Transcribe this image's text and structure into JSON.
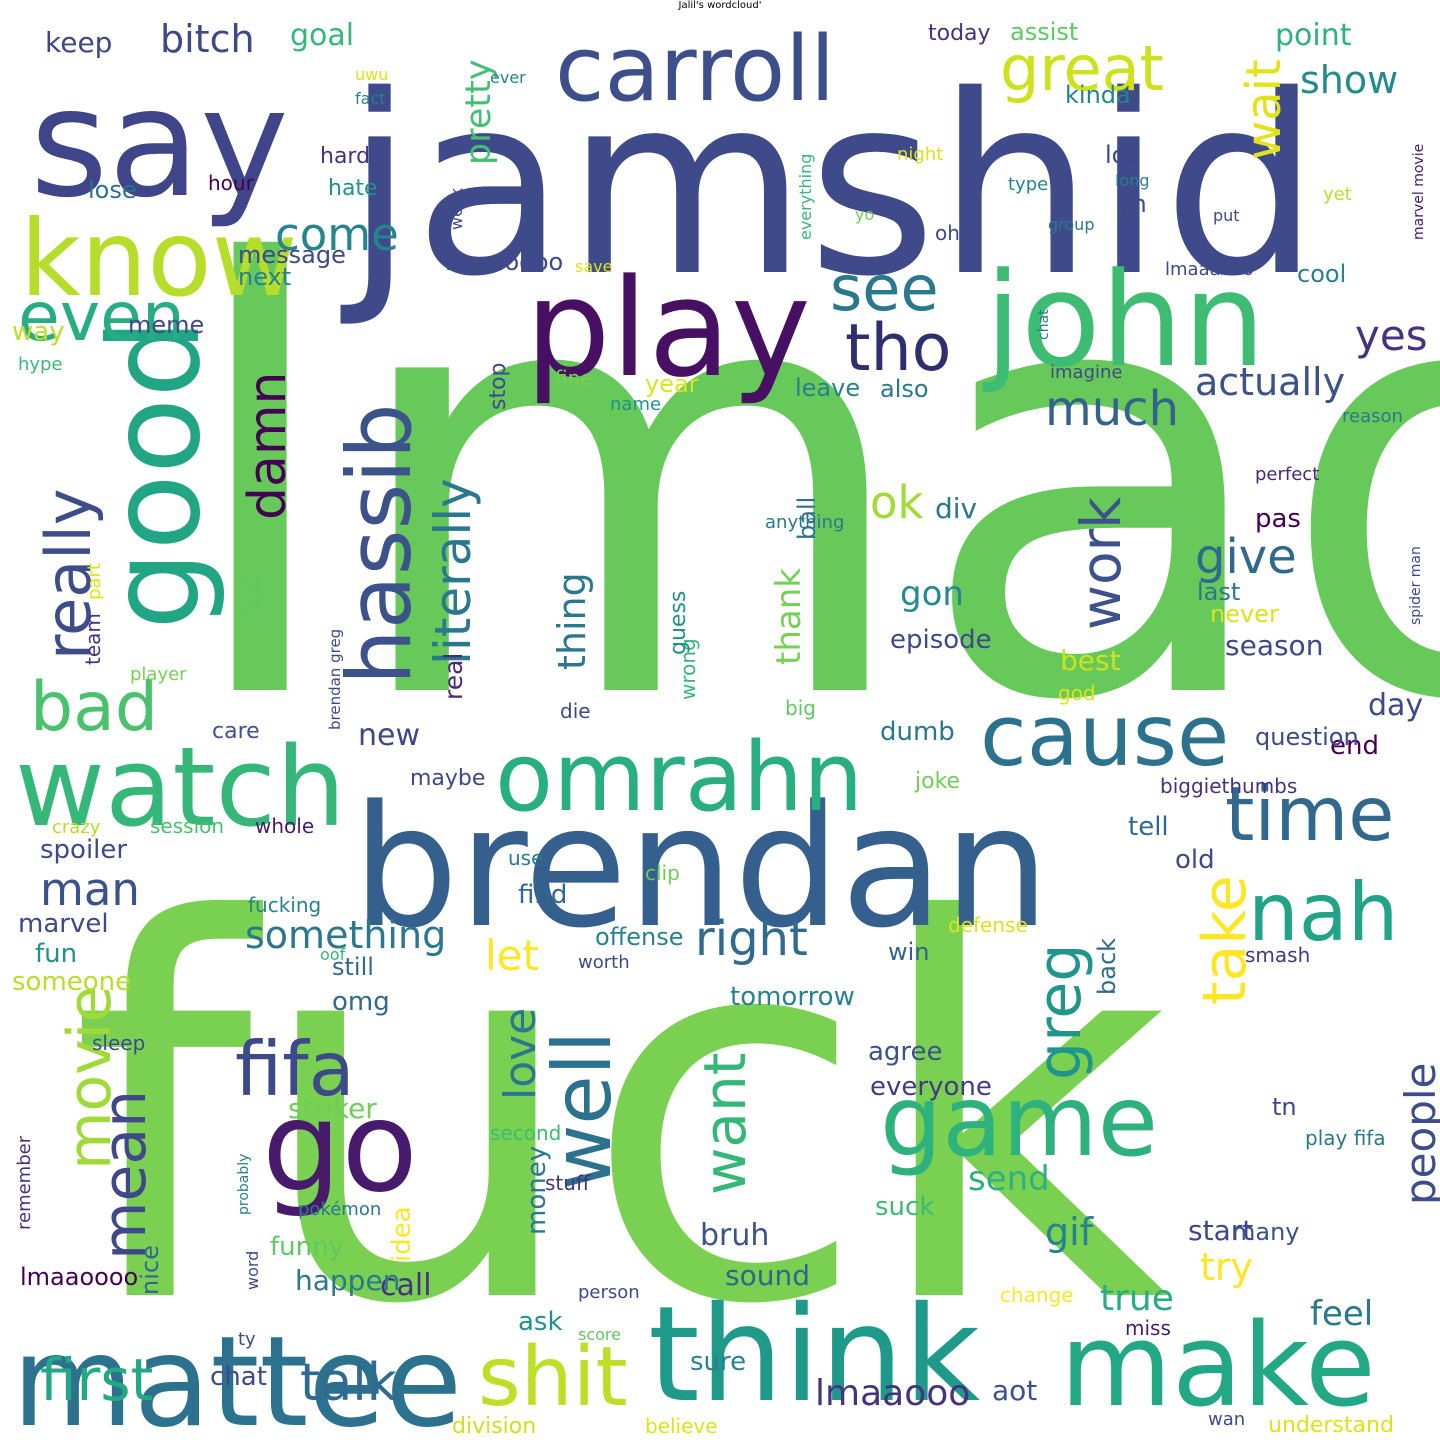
{
  "title": "Jalil's wordcloud'",
  "palette": "viridis",
  "background": "#ffffff",
  "words": [
    {
      "text": "lmao",
      "color": "#66c95a"
    },
    {
      "text": "fuck",
      "color": "#7ad151"
    },
    {
      "text": "jamshid",
      "color": "#3e4a89"
    },
    {
      "text": "say",
      "color": "#404488"
    },
    {
      "text": "brendan",
      "color": "#355f8d"
    },
    {
      "text": "carroll",
      "color": "#3c4f8a"
    },
    {
      "text": "play",
      "color": "#471063"
    },
    {
      "text": "john",
      "color": "#3fbc73"
    },
    {
      "text": "know",
      "color": "#b5de2b"
    },
    {
      "text": "good",
      "color": "#21a585"
    },
    {
      "text": "watch",
      "color": "#35b779"
    },
    {
      "text": "mattee",
      "color": "#2c728e"
    },
    {
      "text": "think",
      "color": "#1f9a8a"
    },
    {
      "text": "make",
      "color": "#22a884"
    },
    {
      "text": "go",
      "color": "#481a6c"
    },
    {
      "text": "game",
      "color": "#2db27d"
    },
    {
      "text": "omrahn",
      "color": "#29af7f"
    },
    {
      "text": "cause",
      "color": "#2c728e"
    },
    {
      "text": "hassib",
      "color": "#3b528b"
    },
    {
      "text": "time",
      "color": "#31688e"
    },
    {
      "text": "nah",
      "color": "#20a386"
    },
    {
      "text": "shit",
      "color": "#bddf26"
    },
    {
      "text": "well",
      "color": "#2c718e"
    },
    {
      "text": "fifa",
      "color": "#3e4989"
    },
    {
      "text": "even",
      "color": "#27ad81"
    },
    {
      "text": "really",
      "color": "#3e4c8a"
    },
    {
      "text": "tho",
      "color": "#2e2f6e"
    },
    {
      "text": "see",
      "color": "#2a788e"
    },
    {
      "text": "great",
      "color": "#cde11d"
    },
    {
      "text": "bad",
      "color": "#4ac16d"
    },
    {
      "text": "movie",
      "color": "#a0da39"
    },
    {
      "text": "mean",
      "color": "#3f4889"
    },
    {
      "text": "take",
      "color": "#fde725"
    },
    {
      "text": "want",
      "color": "#35b779"
    },
    {
      "text": "greg",
      "color": "#1f958b"
    },
    {
      "text": "first",
      "color": "#22a884"
    },
    {
      "text": "talk",
      "color": "#306a8e"
    },
    {
      "text": "literally",
      "color": "#2a788e"
    },
    {
      "text": "damn",
      "color": "#440154"
    },
    {
      "text": "work",
      "color": "#3b528b"
    },
    {
      "text": "much",
      "color": "#33638d"
    },
    {
      "text": "come",
      "color": "#25848e"
    },
    {
      "text": "wait",
      "color": "#e2e418"
    },
    {
      "text": "show",
      "color": "#238a8d"
    },
    {
      "text": "yes",
      "color": "#46327e"
    },
    {
      "text": "actually",
      "color": "#3b528b"
    },
    {
      "text": "give",
      "color": "#31688e"
    },
    {
      "text": "right",
      "color": "#306a8e"
    },
    {
      "text": "something",
      "color": "#2a788e"
    },
    {
      "text": "man",
      "color": "#3b528b"
    },
    {
      "text": "love",
      "color": "#2a788e"
    },
    {
      "text": "people",
      "color": "#3e4c8a"
    },
    {
      "text": "pretty",
      "color": "#43bf71"
    },
    {
      "text": "bitch",
      "color": "#3e4989"
    },
    {
      "text": "goal",
      "color": "#35b779"
    },
    {
      "text": "keep",
      "color": "#3f4788"
    },
    {
      "text": "point",
      "color": "#2db27d"
    },
    {
      "text": "assist",
      "color": "#5ec962"
    },
    {
      "text": "today",
      "color": "#46327e"
    },
    {
      "text": "ok",
      "color": "#a2da37"
    },
    {
      "text": "div",
      "color": "#2a788e"
    },
    {
      "text": "gon",
      "color": "#238a8d"
    },
    {
      "text": "thank",
      "color": "#75d054"
    },
    {
      "text": "thing",
      "color": "#2a788e"
    },
    {
      "text": "real",
      "color": "#482878"
    },
    {
      "text": "way",
      "color": "#bddf26"
    },
    {
      "text": "let",
      "color": "#fde725"
    },
    {
      "text": "gif",
      "color": "#26828e"
    },
    {
      "text": "try",
      "color": "#fde725"
    },
    {
      "text": "true",
      "color": "#27ad81"
    },
    {
      "text": "feel",
      "color": "#2a788e"
    },
    {
      "text": "lmaaooo",
      "color": "#46327e"
    },
    {
      "text": "aot",
      "color": "#3b528b"
    },
    {
      "text": "sure",
      "color": "#26828e"
    },
    {
      "text": "chat",
      "color": "#3e4989"
    },
    {
      "text": "sound",
      "color": "#33638d"
    },
    {
      "text": "bruh",
      "color": "#3b528b"
    },
    {
      "text": "call",
      "color": "#46327e"
    },
    {
      "text": "idea",
      "color": "#fde725"
    },
    {
      "text": "happen",
      "color": "#2a788e"
    },
    {
      "text": "funny",
      "color": "#5ec962"
    },
    {
      "text": "lmaaoooo",
      "color": "#440154"
    },
    {
      "text": "nice",
      "color": "#31688e"
    },
    {
      "text": "money",
      "color": "#2a788e"
    },
    {
      "text": "stuff",
      "color": "#46327e"
    },
    {
      "text": "second",
      "color": "#3bbb75"
    },
    {
      "text": "striker",
      "color": "#6ece58"
    },
    {
      "text": "everyone",
      "color": "#443983"
    },
    {
      "text": "agree",
      "color": "#3b528b"
    },
    {
      "text": "send",
      "color": "#2db27d"
    },
    {
      "text": "suck",
      "color": "#3bbb75"
    },
    {
      "text": "start",
      "color": "#3f4788"
    },
    {
      "text": "tn",
      "color": "#3e4989"
    },
    {
      "text": "many",
      "color": "#3b528b"
    },
    {
      "text": "play fifa",
      "color": "#2a788e"
    },
    {
      "text": "smash",
      "color": "#443983"
    },
    {
      "text": "defense",
      "color": "#dce319"
    },
    {
      "text": "win",
      "color": "#33638d"
    },
    {
      "text": "tomorrow",
      "color": "#26828e"
    },
    {
      "text": "back",
      "color": "#306a8e"
    },
    {
      "text": "omg",
      "color": "#306a8e"
    },
    {
      "text": "still",
      "color": "#31688e"
    },
    {
      "text": "offense",
      "color": "#26828e"
    },
    {
      "text": "fun",
      "color": "#21918c"
    },
    {
      "text": "someone",
      "color": "#b8de29"
    },
    {
      "text": "marvel",
      "color": "#3e4989"
    },
    {
      "text": "spoiler",
      "color": "#3e4989"
    },
    {
      "text": "session",
      "color": "#4ac16d"
    },
    {
      "text": "whole",
      "color": "#481a6c"
    },
    {
      "text": "crazy",
      "color": "#b5de2b"
    },
    {
      "text": "use",
      "color": "#2a788e"
    },
    {
      "text": "find",
      "color": "#31688e"
    },
    {
      "text": "tell",
      "color": "#31688e"
    },
    {
      "text": "old",
      "color": "#3e4989"
    },
    {
      "text": "clip",
      "color": "#6ece58"
    },
    {
      "text": "biggiethumbs",
      "color": "#46327e"
    },
    {
      "text": "joke",
      "color": "#6ece58"
    },
    {
      "text": "maybe",
      "color": "#3f4788"
    },
    {
      "text": "new",
      "color": "#3f4788"
    },
    {
      "text": "dumb",
      "color": "#2a788e"
    },
    {
      "text": "care",
      "color": "#3b528b"
    },
    {
      "text": "big",
      "color": "#5ec962"
    },
    {
      "text": "die",
      "color": "#3e4989"
    },
    {
      "text": "wrong",
      "color": "#35b779"
    },
    {
      "text": "end",
      "color": "#440154"
    },
    {
      "text": "question",
      "color": "#3e4989"
    },
    {
      "text": "god",
      "color": "#dce319"
    },
    {
      "text": "day",
      "color": "#3e4989"
    },
    {
      "text": "best",
      "color": "#cde11d"
    },
    {
      "text": "season",
      "color": "#3e4989"
    },
    {
      "text": "never",
      "color": "#dce319"
    },
    {
      "text": "last",
      "color": "#2a788e"
    },
    {
      "text": "pas",
      "color": "#440154"
    },
    {
      "text": "perfect",
      "color": "#482878"
    },
    {
      "text": "anything",
      "color": "#2a788e"
    },
    {
      "text": "guess",
      "color": "#21918c"
    },
    {
      "text": "ball",
      "color": "#2c728e"
    },
    {
      "text": "episode",
      "color": "#3e4989"
    },
    {
      "text": "stop",
      "color": "#3e4989"
    },
    {
      "text": "leave",
      "color": "#26828e"
    },
    {
      "text": "also",
      "color": "#2a788e"
    },
    {
      "text": "year",
      "color": "#dce319"
    },
    {
      "text": "fine",
      "color": "#75d054"
    },
    {
      "text": "name",
      "color": "#21918c"
    },
    {
      "text": "lmaaoooo",
      "color": "#3e4989"
    },
    {
      "text": "next",
      "color": "#26828e"
    },
    {
      "text": "message",
      "color": "#3e4989"
    },
    {
      "text": "meme",
      "color": "#3e4989"
    },
    {
      "text": "hype",
      "color": "#3bbb75"
    },
    {
      "text": "lose",
      "color": "#2c728e"
    },
    {
      "text": "hour",
      "color": "#440154"
    },
    {
      "text": "hard",
      "color": "#46327e"
    },
    {
      "text": "hate",
      "color": "#21918c"
    },
    {
      "text": "uwu",
      "color": "#dce319"
    },
    {
      "text": "fact",
      "color": "#26828e"
    },
    {
      "text": "ever",
      "color": "#26828e"
    },
    {
      "text": "week",
      "color": "#3e4989"
    },
    {
      "text": "save",
      "color": "#dce319"
    },
    {
      "text": "oh",
      "color": "#3e4989"
    },
    {
      "text": "night",
      "color": "#dce319"
    },
    {
      "text": "everything",
      "color": "#35b779"
    },
    {
      "text": "yo",
      "color": "#6ece58"
    },
    {
      "text": "type",
      "color": "#26828e"
    },
    {
      "text": "long",
      "color": "#26828e"
    },
    {
      "text": "chat",
      "color": "#2a788e"
    },
    {
      "text": "group",
      "color": "#2a788e"
    },
    {
      "text": "put",
      "color": "#3e4989"
    },
    {
      "text": "yet",
      "color": "#b8de29"
    },
    {
      "text": "kinda",
      "color": "#26828e"
    },
    {
      "text": "lot",
      "color": "#3e4989"
    },
    {
      "text": "rn",
      "color": "#3e4989"
    },
    {
      "text": "cool",
      "color": "#26828e"
    },
    {
      "text": "lmaaaooo",
      "color": "#3e4989"
    },
    {
      "text": "imagine",
      "color": "#3e4989"
    },
    {
      "text": "reason",
      "color": "#2a788e"
    },
    {
      "text": "marvel movie",
      "color": "#481a6c"
    },
    {
      "text": "spider man",
      "color": "#3e4989"
    },
    {
      "text": "read",
      "color": "#5ec962"
    },
    {
      "text": "team",
      "color": "#46327e"
    },
    {
      "text": "player",
      "color": "#75d054"
    },
    {
      "text": "part",
      "color": "#dce319"
    },
    {
      "text": "brendan greg",
      "color": "#3e4989"
    },
    {
      "text": "fucking",
      "color": "#26828e"
    },
    {
      "text": "oof",
      "color": "#35b779"
    },
    {
      "text": "worth",
      "color": "#3e4989"
    },
    {
      "text": "sleep",
      "color": "#3e4989"
    },
    {
      "text": "remember",
      "color": "#46327e"
    },
    {
      "text": "probably",
      "color": "#26828e"
    },
    {
      "text": "pokémon",
      "color": "#2a788e"
    },
    {
      "text": "word",
      "color": "#3e4989"
    },
    {
      "text": "ty",
      "color": "#3e4989"
    },
    {
      "text": "person",
      "color": "#3e4989"
    },
    {
      "text": "score",
      "color": "#5ec962"
    },
    {
      "text": "ask",
      "color": "#21918c"
    },
    {
      "text": "division",
      "color": "#cde11d"
    },
    {
      "text": "believe",
      "color": "#dce319"
    },
    {
      "text": "change",
      "color": "#fde725"
    },
    {
      "text": "miss",
      "color": "#481a6c"
    },
    {
      "text": "wan",
      "color": "#3e4989"
    },
    {
      "text": "understand",
      "color": "#dce319"
    }
  ]
}
